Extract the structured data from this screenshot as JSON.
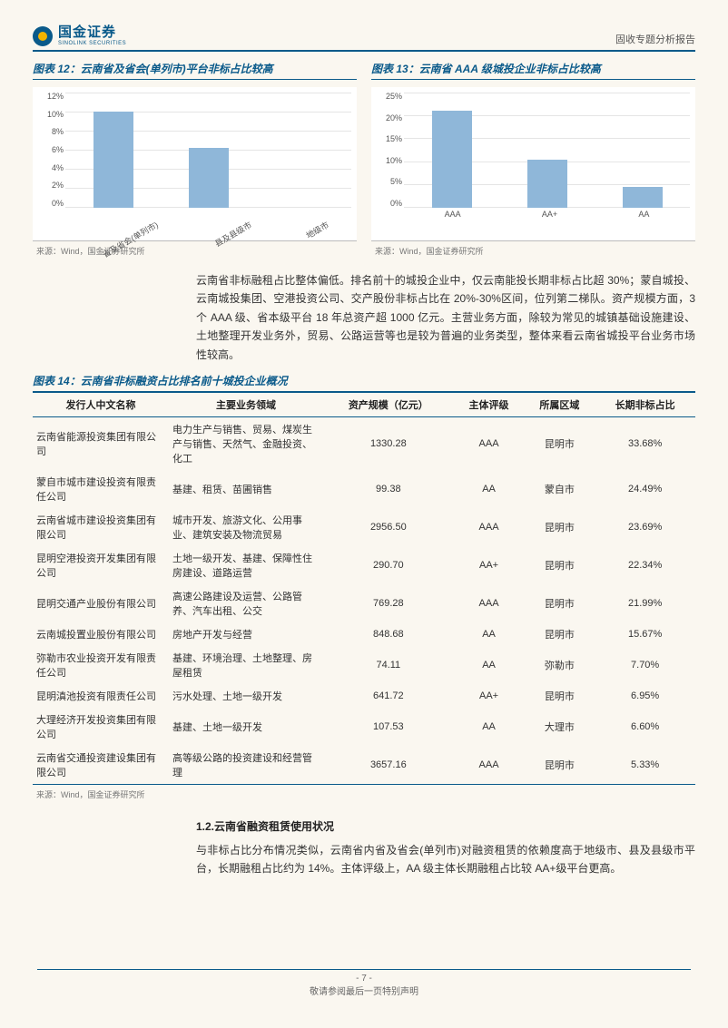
{
  "header": {
    "logo_cn": "国金证券",
    "logo_en": "SINOLINK SECURITIES",
    "right": "固收专题分析报告"
  },
  "chart12": {
    "title": "图表 12：云南省及省会(单列市)平台非标占比较高",
    "ymax": 12,
    "ystep": 2,
    "ysuffix": "%",
    "bar_color": "#8fb7d9",
    "grid_color": "#e5e5e5",
    "categories": [
      "省及省会(单列市)",
      "县及县级市",
      "地级市"
    ],
    "values": [
      10.0,
      6.2,
      0.0
    ],
    "source": "来源：Wind，国金证券研究所"
  },
  "chart13": {
    "title": "图表 13：云南省 AAA 级城投企业非标占比较高",
    "ymax": 25,
    "ystep": 5,
    "ysuffix": "%",
    "bar_color": "#8fb7d9",
    "grid_color": "#e5e5e5",
    "categories": [
      "AAA",
      "AA+",
      "AA"
    ],
    "values": [
      21,
      10.5,
      4.5
    ],
    "source": "来源：Wind，国金证券研究所"
  },
  "para1": "云南省非标融租占比整体偏低。排名前十的城投企业中，仅云南能投长期非标占比超 30%；蒙自城投、云南城投集团、空港投资公司、交产股份非标占比在 20%-30%区间，位列第二梯队。资产规模方面，3 个 AAA 级、省本级平台 18 年总资产超 1000 亿元。主营业务方面，除较为常见的城镇基础设施建设、土地整理开发业务外，贸易、公路运营等也是较为普遍的业务类型，整体来看云南省城投平台业务市场性较高。",
  "table14": {
    "title": "图表 14：云南省非标融资占比排名前十城投企业概况",
    "columns": [
      "发行人中文名称",
      "主要业务领域",
      "资产规模（亿元）",
      "主体评级",
      "所属区域",
      "长期非标占比"
    ],
    "rows": [
      [
        "云南省能源投资集团有限公司",
        "电力生产与销售、贸易、煤炭生产与销售、天然气、金融投资、化工",
        "1330.28",
        "AAA",
        "昆明市",
        "33.68%"
      ],
      [
        "蒙自市城市建设投资有限责任公司",
        "基建、租赁、苗圃销售",
        "99.38",
        "AA",
        "蒙自市",
        "24.49%"
      ],
      [
        "云南省城市建设投资集团有限公司",
        "城市开发、旅游文化、公用事业、建筑安装及物流贸易",
        "2956.50",
        "AAA",
        "昆明市",
        "23.69%"
      ],
      [
        "昆明空港投资开发集团有限公司",
        "土地一级开发、基建、保障性住房建设、道路运营",
        "290.70",
        "AA+",
        "昆明市",
        "22.34%"
      ],
      [
        "昆明交通产业股份有限公司",
        "高速公路建设及运营、公路管养、汽车出租、公交",
        "769.28",
        "AAA",
        "昆明市",
        "21.99%"
      ],
      [
        "云南城投置业股份有限公司",
        "房地产开发与经营",
        "848.68",
        "AA",
        "昆明市",
        "15.67%"
      ],
      [
        "弥勒市农业投资开发有限责任公司",
        "基建、环境治理、土地整理、房屋租赁",
        "74.11",
        "AA",
        "弥勒市",
        "7.70%"
      ],
      [
        "昆明滇池投资有限责任公司",
        "污水处理、土地一级开发",
        "641.72",
        "AA+",
        "昆明市",
        "6.95%"
      ],
      [
        "大理经济开发投资集团有限公司",
        "基建、土地一级开发",
        "107.53",
        "AA",
        "大理市",
        "6.60%"
      ],
      [
        "云南省交通投资建设集团有限公司",
        "高等级公路的投资建设和经营管理",
        "3657.16",
        "AAA",
        "昆明市",
        "5.33%"
      ]
    ],
    "source": "来源：Wind，国金证券研究所"
  },
  "section12": {
    "head": "1.2.云南省融资租赁使用状况",
    "para": "与非标占比分布情况类似，云南省内省及省会(单列市)对融资租赁的依赖度高于地级市、县及县级市平台，长期融租占比约为 14%。主体评级上，AA 级主体长期融租占比较 AA+级平台更高。"
  },
  "footer": {
    "page": "- 7 -",
    "note": "敬请参阅最后一页特别声明"
  }
}
